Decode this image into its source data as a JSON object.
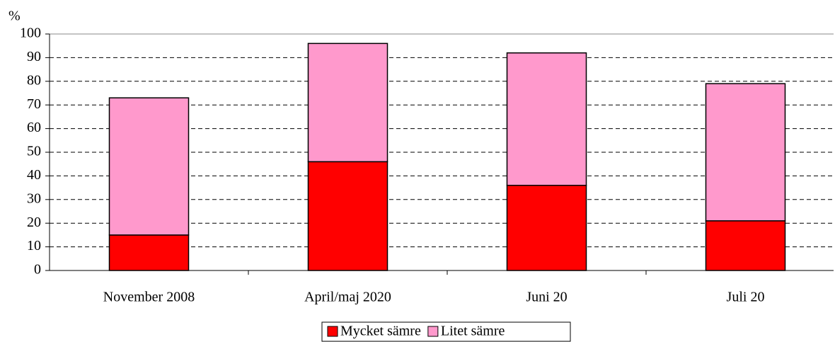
{
  "chart_data": {
    "type": "stacked_bar",
    "y_label": "%",
    "categories": [
      "November 2008",
      "April/maj 2020",
      "Juni 20",
      "Juli 20"
    ],
    "series": [
      {
        "name": "Mycket sämre",
        "color": "#ff0000",
        "values": [
          15,
          46,
          36,
          21
        ]
      },
      {
        "name": "Litet sämre",
        "color": "#ff99cc",
        "values": [
          58,
          50,
          56,
          58
        ]
      }
    ],
    "ylim": [
      0,
      100
    ],
    "yticks": [
      0,
      10,
      20,
      30,
      40,
      50,
      60,
      70,
      80,
      90,
      100
    ],
    "grid": true,
    "legend": "bottom"
  }
}
